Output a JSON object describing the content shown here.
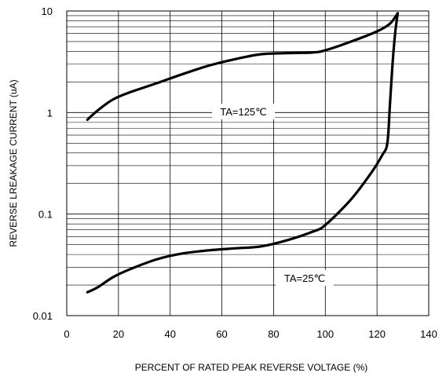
{
  "chart_data": {
    "type": "line",
    "title": "",
    "xlabel": "PERCENT OF RATED PEAK REVERSE VOLTAGE (%)",
    "ylabel": "REVERSE LREAKAGE CURRENT (uA)",
    "xlim": [
      0,
      140
    ],
    "ylim": [
      0.01,
      10
    ],
    "yscale": "log",
    "grid": true,
    "x_ticks": [
      0,
      20,
      40,
      60,
      80,
      100,
      120,
      140
    ],
    "x_tick_labels": [
      "0",
      "20",
      "40",
      "60",
      "80",
      "100",
      "120",
      "140"
    ],
    "y_ticks": [
      10,
      1,
      0.1,
      0.01
    ],
    "y_tick_labels": [
      "10",
      "1",
      "0.1",
      "0.01"
    ],
    "series": [
      {
        "name": "TA=125℃",
        "x": [
          8,
          12,
          18,
          25,
          35,
          45,
          55,
          65,
          75,
          85,
          95,
          100,
          110,
          120,
          125,
          128
        ],
        "y": [
          0.85,
          1.05,
          1.35,
          1.6,
          1.95,
          2.4,
          2.9,
          3.35,
          3.75,
          3.85,
          3.9,
          4.1,
          5.0,
          6.3,
          7.5,
          9.5
        ]
      },
      {
        "name": "TA=25℃",
        "x": [
          8,
          12,
          18,
          25,
          35,
          45,
          55,
          65,
          75,
          85,
          95,
          100,
          110,
          118,
          122,
          124,
          125,
          126,
          127,
          128
        ],
        "y": [
          0.017,
          0.019,
          0.024,
          0.029,
          0.036,
          0.041,
          0.044,
          0.046,
          0.048,
          0.055,
          0.067,
          0.078,
          0.14,
          0.26,
          0.38,
          0.5,
          1.2,
          3.0,
          6.0,
          9.5
        ]
      }
    ],
    "annotations": [
      {
        "text": "TA=125℃",
        "series": 0
      },
      {
        "text": "TA=25℃",
        "series": 1
      }
    ]
  }
}
